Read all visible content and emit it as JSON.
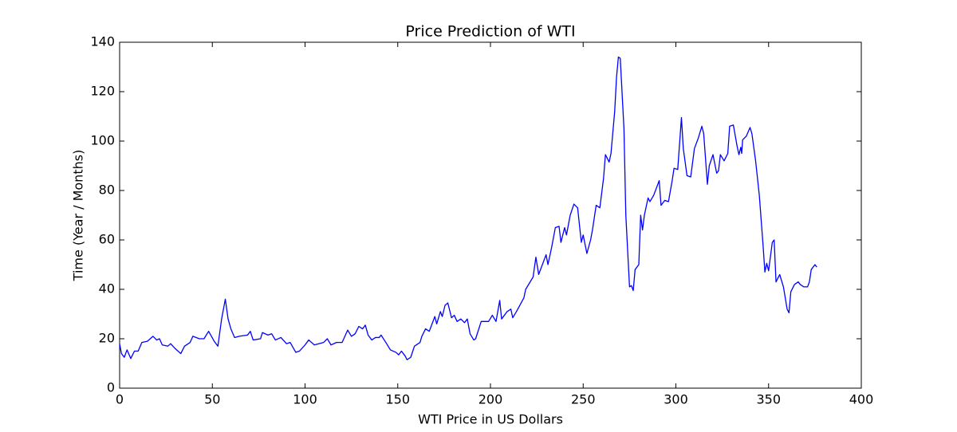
{
  "chart_data": {
    "type": "line",
    "title": "Price Prediction of WTI",
    "x_label": "WTI Price in US Dollars",
    "y_label": "Time (Year / Months)",
    "color": "#0000ff",
    "grid": false,
    "xlim": [
      0,
      400
    ],
    "xticks": [
      0,
      50,
      100,
      150,
      200,
      250,
      300,
      350,
      400
    ],
    "ylim": [
      0,
      140
    ],
    "yticks": [
      0,
      20,
      40,
      60,
      80,
      100,
      120,
      140
    ],
    "x": [
      0,
      1,
      2.5,
      4,
      6,
      8,
      10,
      12,
      15,
      18,
      20,
      21.5,
      23,
      26,
      27.5,
      30,
      33,
      35,
      38,
      39.5,
      43,
      45.5,
      48,
      51,
      53,
      55,
      57,
      58.5,
      60,
      62,
      64.5,
      69,
      70.5,
      72,
      76,
      77,
      80,
      82,
      84,
      87,
      90,
      92,
      95,
      97,
      100,
      102,
      105,
      107.5,
      110,
      112,
      114,
      117,
      120,
      123,
      125,
      127,
      129,
      131,
      132.5,
      134,
      136,
      138,
      140,
      141,
      144,
      146,
      149,
      150.5,
      152,
      154,
      155,
      157,
      159,
      162,
      163,
      165,
      167,
      168.5,
      170,
      171,
      173,
      174,
      175.5,
      177,
      179,
      180.5,
      182,
      184,
      186,
      187.5,
      189,
      191,
      192,
      195,
      199,
      201,
      203,
      205,
      206,
      209,
      211,
      212,
      214,
      218,
      219,
      223,
      224.5,
      226,
      230,
      231,
      233,
      235,
      237,
      238,
      240,
      241,
      243,
      245,
      247,
      249,
      250,
      252,
      254,
      255,
      257,
      259,
      261,
      262,
      264,
      265,
      267,
      268,
      269,
      270,
      272,
      273,
      275,
      276,
      277,
      278,
      280,
      280.5,
      281,
      282,
      283,
      285,
      286,
      288,
      291,
      292,
      294,
      296,
      298,
      299,
      301,
      303,
      304,
      306,
      308,
      310,
      312,
      314,
      315,
      317,
      318,
      320,
      322,
      323,
      324,
      326,
      328,
      329,
      331,
      333,
      334,
      335,
      335.5,
      336,
      338,
      340,
      341,
      343,
      345,
      347,
      348,
      349,
      350,
      352,
      353,
      354,
      356,
      358,
      360,
      361,
      362,
      364,
      366,
      367,
      369,
      371,
      372,
      373,
      375,
      376
    ],
    "values": [
      18,
      14,
      12.5,
      15.5,
      12,
      15,
      15,
      18.5,
      19,
      21,
      19.5,
      20,
      17.5,
      17,
      18,
      16,
      14,
      17,
      18.5,
      21,
      20,
      20,
      23,
      19,
      17,
      28,
      36,
      28,
      24,
      20.5,
      21,
      21.5,
      23,
      19.5,
      20,
      22.5,
      21.5,
      22,
      19.5,
      20.5,
      18,
      18.5,
      14.5,
      15,
      17.5,
      19.5,
      17.5,
      18,
      18.5,
      20,
      17.5,
      18.5,
      18.5,
      23.5,
      21,
      22,
      25,
      24,
      25.5,
      21.5,
      19.5,
      20.5,
      20.5,
      21.5,
      18,
      15.5,
      14.5,
      13.5,
      15,
      13,
      11.5,
      12.5,
      17,
      18.5,
      21,
      24,
      23,
      26,
      29,
      26,
      31,
      29,
      33.5,
      34.5,
      28.5,
      29.5,
      27,
      28,
      26.5,
      28,
      22,
      19.5,
      20,
      27,
      27,
      29.5,
      27,
      35.5,
      28,
      31,
      32,
      28.5,
      31,
      36.5,
      40,
      45,
      53,
      46,
      54,
      50,
      57,
      65,
      65.5,
      59,
      65,
      62,
      70,
      74.5,
      73,
      59,
      62,
      54.5,
      60,
      64,
      74,
      73,
      85,
      94.5,
      91.5,
      95,
      112,
      126,
      134,
      133.5,
      105,
      70,
      41,
      41.5,
      39.5,
      48,
      50,
      60,
      70,
      64,
      70,
      77,
      75.5,
      78,
      84,
      74,
      76,
      75.5,
      84,
      89,
      88.5,
      109.5,
      97,
      86,
      85.5,
      97,
      101,
      106,
      103,
      82.5,
      90,
      94.5,
      87,
      88,
      94.5,
      92,
      95,
      106,
      106.5,
      98,
      94.5,
      97.5,
      95,
      100.5,
      102,
      105.5,
      103,
      92,
      78,
      58,
      47,
      50.5,
      47.5,
      59,
      60,
      43,
      46,
      41,
      32,
      30.5,
      39,
      42,
      43,
      42,
      41,
      41,
      43,
      48,
      50,
      49
    ]
  }
}
